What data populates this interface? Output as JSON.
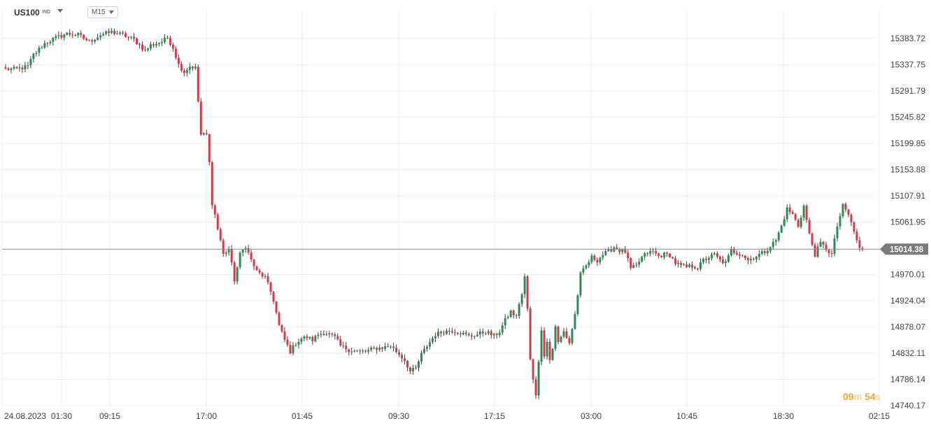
{
  "header": {
    "symbol": "US100",
    "symbol_tag": "IND",
    "timeframe": "M15"
  },
  "countdown": {
    "minutes": "09",
    "minutes_unit": "m",
    "seconds": "54",
    "seconds_unit": "s"
  },
  "colors": {
    "up": "#2e8b57",
    "down": "#d23b4c",
    "grid": "#ededed",
    "price_line": "#8a8a8a",
    "price_tag": "#7a7a7a",
    "countdown": "#f5a623"
  },
  "chart_data": {
    "type": "candlestick",
    "symbol": "US100",
    "timeframe": "M15",
    "current_price": 15014.38,
    "y_ticks": [
      15383.72,
      15337.75,
      15291.79,
      15245.82,
      15199.85,
      15153.88,
      15107.91,
      15061.95,
      14970.01,
      14924.04,
      14878.07,
      14832.11,
      14786.14,
      14740.17
    ],
    "x_ticks": [
      "24.08.2023",
      "01:30",
      "09:15",
      "17:00",
      "01:45",
      "09:30",
      "17:15",
      "03:00",
      "10:45",
      "18:30",
      "02:15"
    ],
    "ylim": [
      14735,
      15405
    ],
    "grid": true,
    "close_path": [
      [
        0,
        15330
      ],
      [
        4,
        15330
      ],
      [
        8,
        15335
      ],
      [
        10,
        15355
      ],
      [
        14,
        15375
      ],
      [
        18,
        15385
      ],
      [
        22,
        15392
      ],
      [
        26,
        15390
      ],
      [
        30,
        15378
      ],
      [
        34,
        15390
      ],
      [
        38,
        15395
      ],
      [
        42,
        15390
      ],
      [
        46,
        15382
      ],
      [
        50,
        15362
      ],
      [
        52,
        15372
      ],
      [
        56,
        15378
      ],
      [
        58,
        15385
      ],
      [
        60,
        15368
      ],
      [
        62,
        15338
      ],
      [
        64,
        15325
      ],
      [
        66,
        15335
      ],
      [
        68,
        15332
      ],
      [
        70,
        15215
      ],
      [
        72,
        15215
      ],
      [
        73,
        15165
      ],
      [
        74,
        15095
      ],
      [
        75,
        15075
      ],
      [
        76,
        15050
      ],
      [
        77,
        15030
      ],
      [
        78,
        15005
      ],
      [
        80,
        15015
      ],
      [
        82,
        14960
      ],
      [
        84,
        15005
      ],
      [
        86,
        15020
      ],
      [
        88,
        14995
      ],
      [
        90,
        14975
      ],
      [
        93,
        14965
      ],
      [
        95,
        14940
      ],
      [
        96,
        14925
      ],
      [
        98,
        14880
      ],
      [
        100,
        14855
      ],
      [
        102,
        14835
      ],
      [
        104,
        14850
      ],
      [
        106,
        14858
      ],
      [
        108,
        14860
      ],
      [
        110,
        14855
      ],
      [
        112,
        14865
      ],
      [
        114,
        14868
      ],
      [
        116,
        14865
      ],
      [
        118,
        14860
      ],
      [
        120,
        14845
      ],
      [
        123,
        14838
      ],
      [
        126,
        14835
      ],
      [
        129,
        14835
      ],
      [
        132,
        14840
      ],
      [
        135,
        14842
      ],
      [
        138,
        14845
      ],
      [
        141,
        14830
      ],
      [
        143,
        14820
      ],
      [
        145,
        14800
      ],
      [
        147,
        14805
      ],
      [
        149,
        14830
      ],
      [
        151,
        14845
      ],
      [
        154,
        14865
      ],
      [
        157,
        14870
      ],
      [
        160,
        14872
      ],
      [
        163,
        14868
      ],
      [
        166,
        14862
      ],
      [
        169,
        14865
      ],
      [
        172,
        14870
      ],
      [
        175,
        14862
      ],
      [
        177,
        14870
      ],
      [
        179,
        14890
      ],
      [
        181,
        14905
      ],
      [
        183,
        14895
      ],
      [
        184,
        14920
      ],
      [
        185,
        14935
      ],
      [
        186,
        14965
      ],
      [
        187,
        14910
      ],
      [
        188,
        14820
      ],
      [
        189,
        14785
      ],
      [
        190,
        14760
      ],
      [
        191,
        14820
      ],
      [
        192,
        14870
      ],
      [
        193,
        14830
      ],
      [
        194,
        14855
      ],
      [
        195,
        14820
      ],
      [
        196,
        14840
      ],
      [
        197,
        14880
      ],
      [
        198,
        14850
      ],
      [
        200,
        14870
      ],
      [
        202,
        14850
      ],
      [
        204,
        14900
      ],
      [
        206,
        14970
      ],
      [
        208,
        14985
      ],
      [
        210,
        15000
      ],
      [
        212,
        14995
      ],
      [
        214,
        15005
      ],
      [
        216,
        15010
      ],
      [
        218,
        15018
      ],
      [
        220,
        15012
      ],
      [
        222,
        15010
      ],
      [
        224,
        14980
      ],
      [
        226,
        14985
      ],
      [
        228,
        15000
      ],
      [
        230,
        15008
      ],
      [
        232,
        15010
      ],
      [
        234,
        15002
      ],
      [
        236,
        15005
      ],
      [
        238,
        15004
      ],
      [
        240,
        14990
      ],
      [
        242,
        14985
      ],
      [
        244,
        14983
      ],
      [
        246,
        14985
      ],
      [
        248,
        14982
      ],
      [
        250,
        14995
      ],
      [
        252,
        15000
      ],
      [
        254,
        15005
      ],
      [
        256,
        14995
      ],
      [
        258,
        14990
      ],
      [
        260,
        15012
      ],
      [
        262,
        15008
      ],
      [
        264,
        15005
      ],
      [
        266,
        14995
      ],
      [
        268,
        15000
      ],
      [
        270,
        15005
      ],
      [
        272,
        15010
      ],
      [
        274,
        15020
      ],
      [
        276,
        15030
      ],
      [
        278,
        15055
      ],
      [
        280,
        15085
      ],
      [
        282,
        15075
      ],
      [
        284,
        15055
      ],
      [
        286,
        15090
      ],
      [
        288,
        15040
      ],
      [
        290,
        15005
      ],
      [
        292,
        15025
      ],
      [
        294,
        15015
      ],
      [
        296,
        15005
      ],
      [
        298,
        15055
      ],
      [
        300,
        15090
      ],
      [
        302,
        15075
      ],
      [
        304,
        15045
      ],
      [
        306,
        15015
      ],
      [
        307,
        15012
      ]
    ]
  }
}
